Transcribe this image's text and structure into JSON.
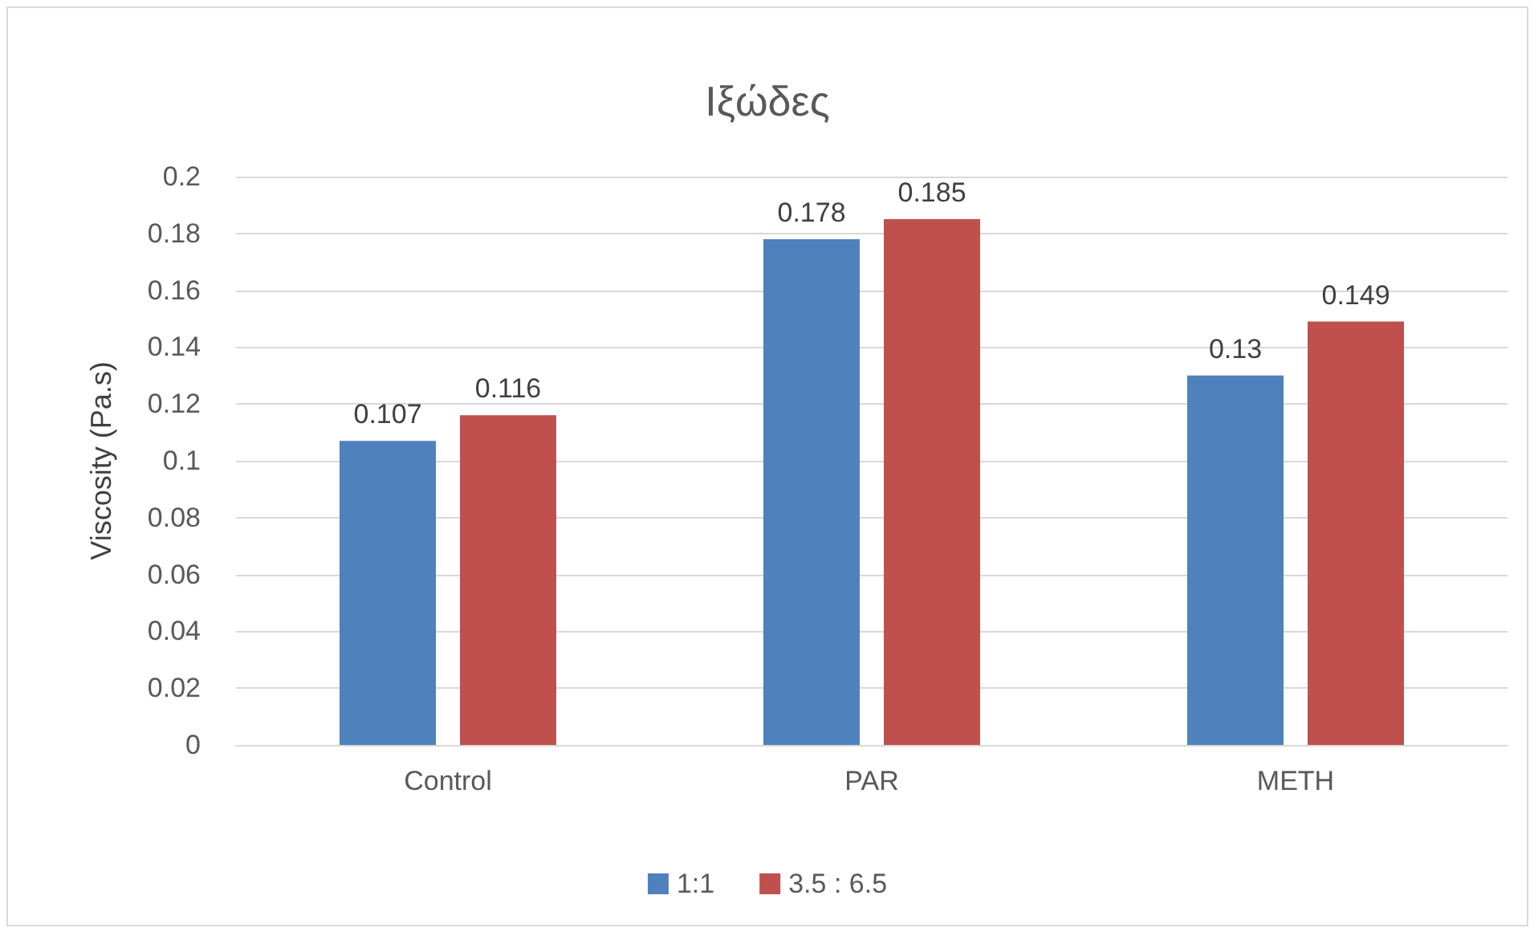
{
  "chart_data": {
    "type": "bar",
    "title": "Ιξώδες",
    "ylabel": "Viscosity (Pa.s)",
    "categories": [
      "Control",
      "PAR",
      "METH"
    ],
    "series": [
      {
        "name": "1:1",
        "color": "#4f81bd",
        "values": [
          0.107,
          0.178,
          0.13
        ]
      },
      {
        "name": "3.5 : 6.5",
        "color": "#c0504d",
        "values": [
          0.116,
          0.185,
          0.149
        ]
      }
    ],
    "ylim": [
      0,
      0.2
    ],
    "yticks": [
      0,
      0.02,
      0.04,
      0.06,
      0.08,
      0.1,
      0.12,
      0.14,
      0.16,
      0.18,
      0.2
    ],
    "grid": "y",
    "legend": "bottom",
    "data_labels": true
  }
}
